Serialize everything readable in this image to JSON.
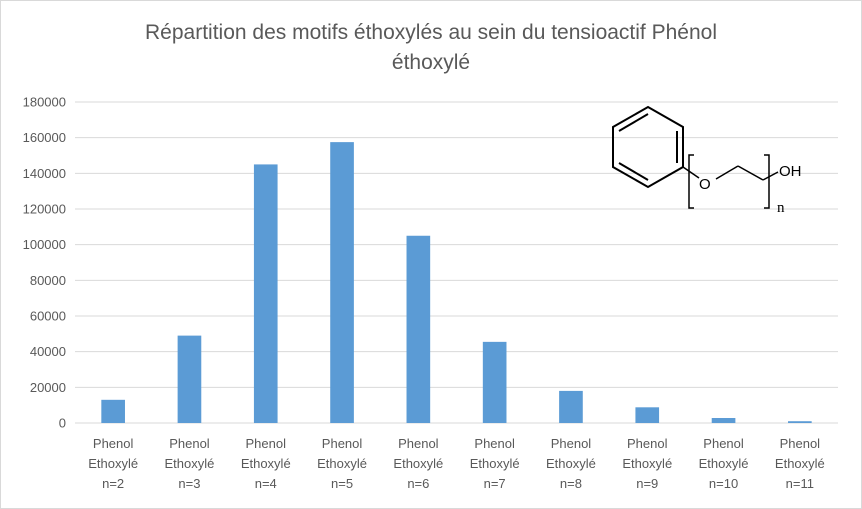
{
  "chart_data": {
    "type": "bar",
    "title_line1": "Répartition des motifs éthoxylés au sein du tensioactif Phénol",
    "title_line2": "éthoxylé",
    "categories": [
      [
        "Phenol",
        "Ethoxylé",
        "n=2"
      ],
      [
        "Phenol",
        "Ethoxylé",
        "n=3"
      ],
      [
        "Phenol",
        "Ethoxylé",
        "n=4"
      ],
      [
        "Phenol",
        "Ethoxylé",
        "n=5"
      ],
      [
        "Phenol",
        "Ethoxylé",
        "n=6"
      ],
      [
        "Phenol",
        "Ethoxylé",
        "n=7"
      ],
      [
        "Phenol",
        "Ethoxylé",
        "n=8"
      ],
      [
        "Phenol",
        "Ethoxylé",
        "n=9"
      ],
      [
        "Phenol",
        "Ethoxylé",
        "n=10"
      ],
      [
        "Phenol",
        "Ethoxylé",
        "n=11"
      ]
    ],
    "values": [
      13000,
      49000,
      145000,
      157500,
      105000,
      45500,
      18000,
      8800,
      2800,
      1000
    ],
    "ylim": [
      0,
      180000
    ],
    "yticks": [
      0,
      20000,
      40000,
      60000,
      80000,
      100000,
      120000,
      140000,
      160000,
      180000
    ],
    "grid": true,
    "bar_color": "#5b9bd5",
    "grid_color": "#d9d9d9"
  },
  "molecule": {
    "oxygen_label": "O",
    "hydroxyl_label": "OH",
    "repeat_label": "n"
  }
}
